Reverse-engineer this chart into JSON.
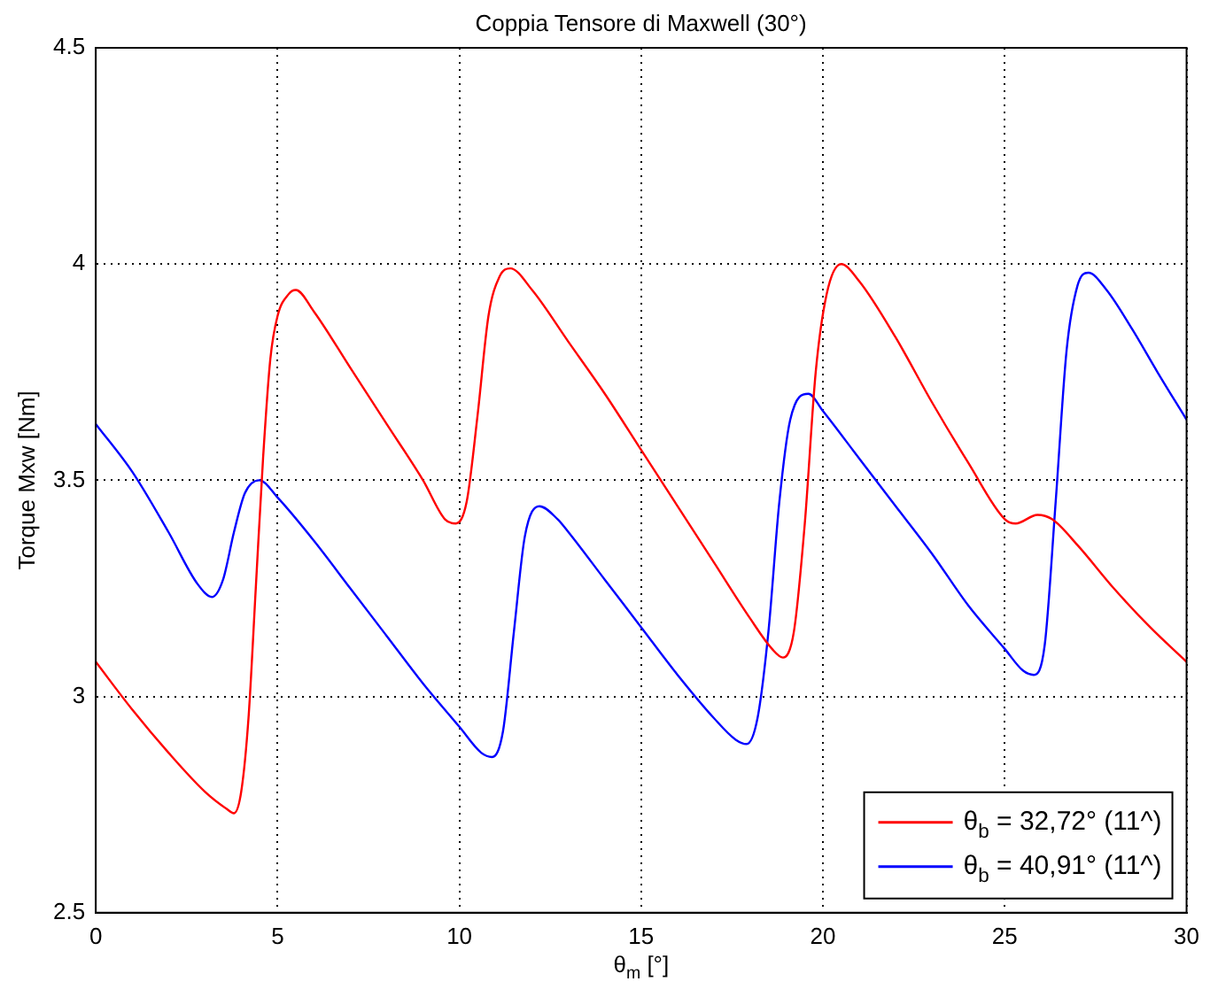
{
  "chart_data": {
    "type": "line",
    "title": "Coppia Tensore di Maxwell (30°)",
    "xlabel": "θ$_{m}$ [°]",
    "ylabel": "Torque Mxw [Nm]",
    "xlim": [
      0,
      30
    ],
    "xticks": [
      0,
      5,
      10,
      15,
      20,
      25,
      30
    ],
    "ylim": [
      2.5,
      4.5
    ],
    "yticks": [
      2.5,
      3,
      3.5,
      4,
      4.5
    ],
    "grid": true,
    "legend": "bottom right",
    "marker": "none",
    "line_style": "solid",
    "series": [
      {
        "name": "θ$_{b}$ = 32,72° (11^)",
        "color": "#ff0000",
        "x": [
          0,
          1,
          2,
          3,
          3.6,
          3.8,
          4.0,
          4.2,
          4.4,
          4.6,
          4.8,
          5.0,
          5.3,
          5.5,
          6,
          7,
          8,
          9,
          9.6,
          9.9,
          10.2,
          10.5,
          10.8,
          11.1,
          11.4,
          12,
          13,
          14,
          15,
          16,
          17,
          18,
          18.6,
          18.9,
          19.2,
          19.5,
          19.8,
          20.1,
          20.5,
          21,
          22,
          23,
          24,
          25,
          25.3,
          25.9,
          26.3,
          27,
          28,
          29,
          30
        ],
        "values": [
          3.08,
          2.97,
          2.87,
          2.78,
          2.74,
          2.73,
          2.78,
          2.95,
          3.25,
          3.55,
          3.78,
          3.88,
          3.93,
          3.94,
          3.89,
          3.76,
          3.63,
          3.5,
          3.41,
          3.4,
          3.45,
          3.65,
          3.88,
          3.97,
          3.99,
          3.94,
          3.82,
          3.7,
          3.57,
          3.44,
          3.31,
          3.18,
          3.11,
          3.09,
          3.15,
          3.4,
          3.75,
          3.93,
          4.0,
          3.96,
          3.83,
          3.68,
          3.54,
          3.41,
          3.4,
          3.42,
          3.41,
          3.35,
          3.25,
          3.16,
          3.08
        ]
      },
      {
        "name": "θ$_{b}$ = 40,91° (11^)",
        "color": "#0000ff",
        "x": [
          0,
          1,
          2,
          2.8,
          3.2,
          3.5,
          3.8,
          4.1,
          4.5,
          5,
          6,
          7,
          8,
          9,
          10,
          10.6,
          10.9,
          11.2,
          11.5,
          11.8,
          12.2,
          12.7,
          13,
          14,
          15,
          16,
          17,
          17.6,
          17.9,
          18.2,
          18.5,
          18.8,
          19.1,
          19.6,
          20,
          21,
          22,
          23,
          24,
          25,
          25.5,
          25.8,
          26.1,
          26.4,
          26.7,
          27,
          27.3,
          27.8,
          28.5,
          29.2,
          30
        ],
        "values": [
          3.63,
          3.52,
          3.38,
          3.26,
          3.23,
          3.27,
          3.38,
          3.47,
          3.5,
          3.46,
          3.36,
          3.25,
          3.14,
          3.03,
          2.93,
          2.87,
          2.86,
          2.92,
          3.15,
          3.37,
          3.44,
          3.41,
          3.38,
          3.27,
          3.16,
          3.05,
          2.95,
          2.9,
          2.89,
          2.95,
          3.15,
          3.45,
          3.64,
          3.7,
          3.66,
          3.55,
          3.44,
          3.33,
          3.21,
          3.11,
          3.06,
          3.05,
          3.12,
          3.45,
          3.8,
          3.95,
          3.98,
          3.94,
          3.85,
          3.75,
          3.64
        ]
      }
    ]
  }
}
